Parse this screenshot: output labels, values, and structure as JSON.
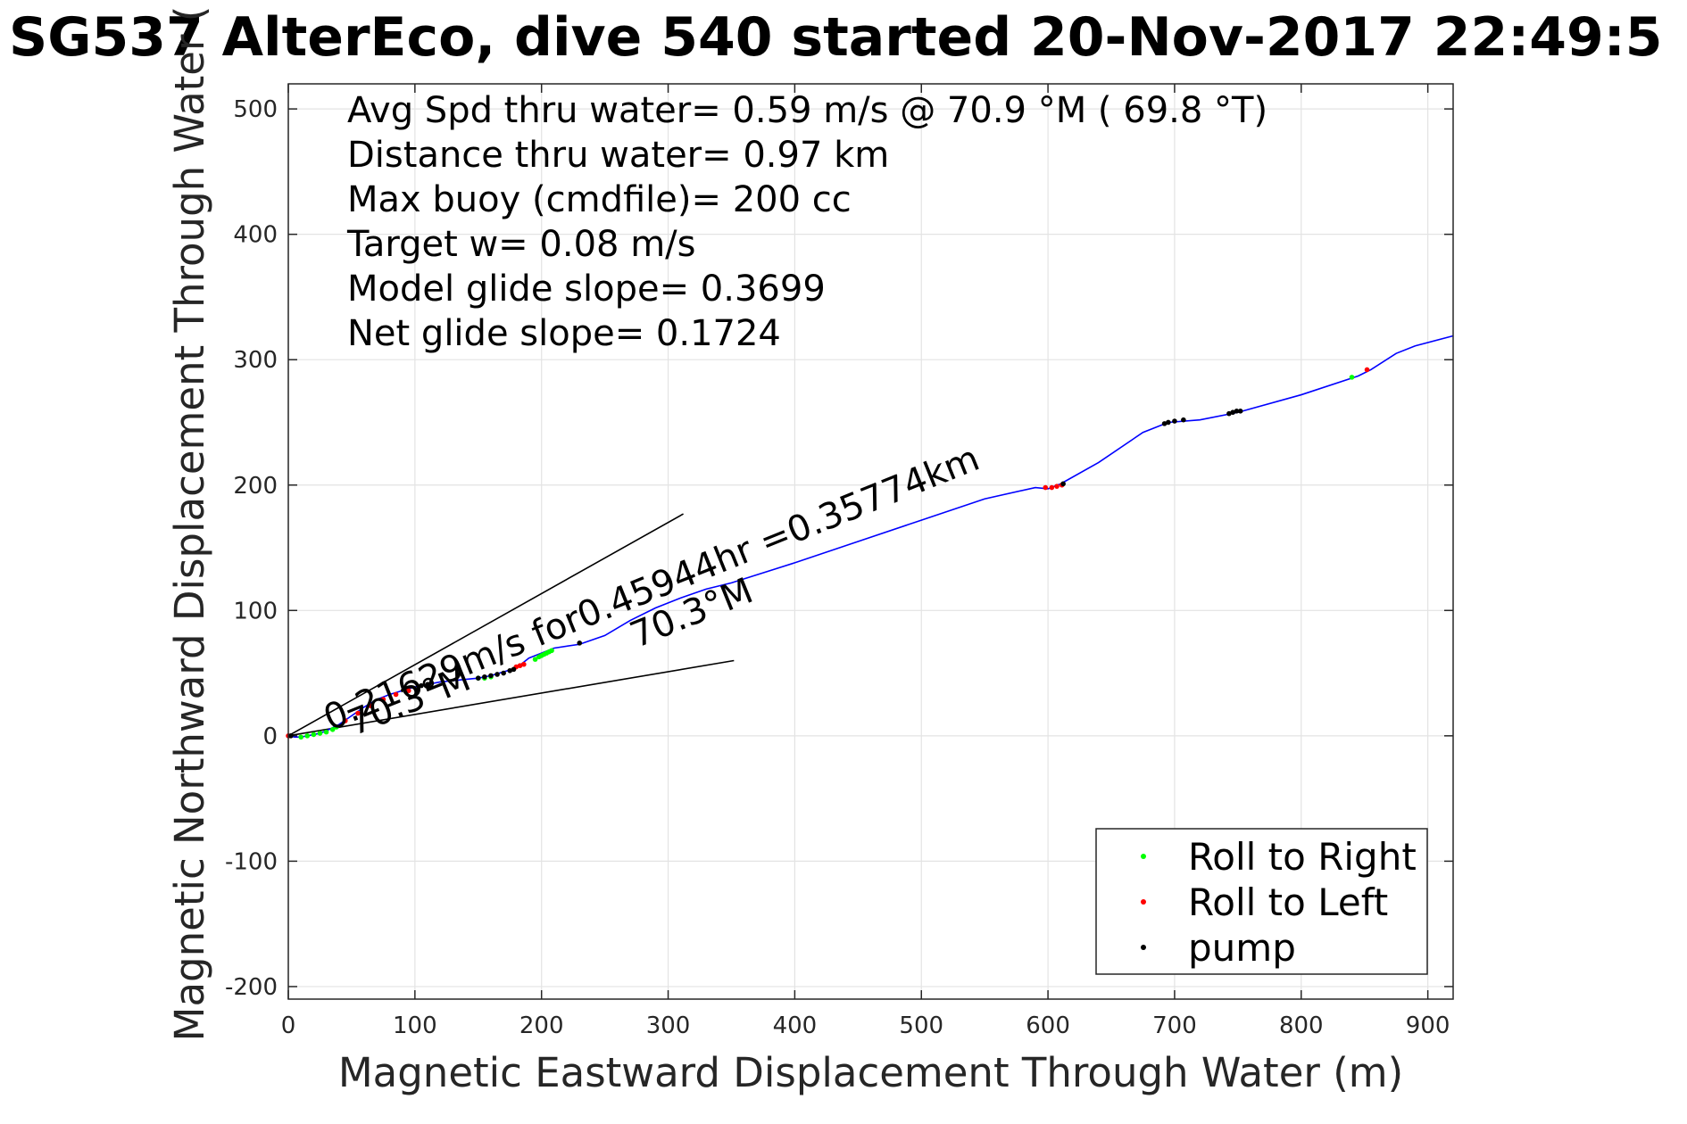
{
  "chart_data": {
    "type": "line",
    "title": "SG537 AlterEco, dive 540 started 20-Nov-2017 22:49:5",
    "xlabel": "Magnetic Eastward Displacement Through Water (m)",
    "ylabel": "Magnetic Northward Displacement Through Water (",
    "xlim": [
      0,
      920
    ],
    "ylim": [
      -210,
      520
    ],
    "xticks": [
      "0",
      "100",
      "200",
      "300",
      "400",
      "500",
      "600",
      "700",
      "800",
      "900"
    ],
    "yticks": [
      "-200",
      "-100",
      "0",
      "100",
      "200",
      "300",
      "400",
      "500"
    ],
    "grid": true,
    "stats": [
      "Avg Spd thru water=  0.59 m/s @  70.9 °M ( 69.8 °T)",
      "Distance thru water=  0.97 km",
      "Max buoy (cmdfile)= 200 cc",
      "Target w= 0.08 m/s",
      "Model glide slope= 0.3699",
      "Net glide slope= 0.1724"
    ],
    "annotations": {
      "surface_drift": "0.21629m/s for0.45944hr =0.35774km",
      "heading_near": "70.3°M",
      "heading_far": "70.3°M"
    },
    "track": {
      "color": "#0000ff",
      "x": [
        0,
        5,
        10,
        15,
        20,
        25,
        30,
        40,
        50,
        60,
        70,
        80,
        90,
        100,
        110,
        120,
        130,
        140,
        150,
        160,
        170,
        180,
        190,
        200,
        210,
        230,
        250,
        270,
        290,
        310,
        330,
        350,
        400,
        450,
        500,
        550,
        590,
        600,
        610,
        640,
        675,
        695,
        720,
        750,
        800,
        845,
        855,
        875,
        890,
        920
      ],
      "y": [
        0,
        -1,
        -1,
        0,
        1,
        2,
        4,
        9,
        16,
        23,
        29,
        33,
        36,
        39,
        41,
        43,
        44,
        45,
        46,
        48,
        51,
        54,
        62,
        66,
        70,
        73,
        80,
        92,
        102,
        110,
        117,
        122,
        138,
        155,
        172,
        189,
        198,
        197,
        201,
        218,
        242,
        250,
        252,
        258,
        272,
        287,
        292,
        305,
        311,
        319
      ]
    },
    "heading_lines": [
      {
        "x": [
          0,
          312
        ],
        "y": [
          0,
          177
        ]
      },
      {
        "x": [
          0,
          352
        ],
        "y": [
          0,
          60
        ]
      }
    ],
    "series": [
      {
        "name": "Roll to Right",
        "color": "#00ff00",
        "x": [
          10,
          15,
          20,
          25,
          30,
          35,
          38,
          150,
          155,
          160,
          195,
          198,
          200,
          202,
          204,
          206,
          208,
          840
        ],
        "y": [
          -1,
          0,
          1,
          2,
          3,
          5,
          7,
          46,
          46,
          47,
          61,
          63,
          64,
          65,
          66,
          67,
          68,
          286
        ]
      },
      {
        "name": "Roll to Left",
        "color": "#ff0000",
        "x": [
          0,
          45,
          55,
          65,
          75,
          85,
          95,
          180,
          183,
          186,
          598,
          603,
          607,
          611,
          852
        ],
        "y": [
          0,
          12,
          18,
          24,
          29,
          33,
          36,
          55,
          56,
          57,
          198,
          198,
          199,
          200,
          292
        ]
      },
      {
        "name": "pump",
        "color": "#000000",
        "x": [
          2,
          105,
          110,
          150,
          155,
          160,
          165,
          170,
          175,
          178,
          230,
          692,
          695,
          700,
          707,
          743,
          746,
          749,
          752,
          612
        ],
        "y": [
          0,
          40,
          41,
          46,
          47,
          48,
          49,
          50,
          52,
          53,
          74,
          249,
          250,
          251,
          252,
          257,
          258,
          259,
          259,
          201
        ]
      }
    ],
    "legend": {
      "position": "bottom-right"
    }
  }
}
